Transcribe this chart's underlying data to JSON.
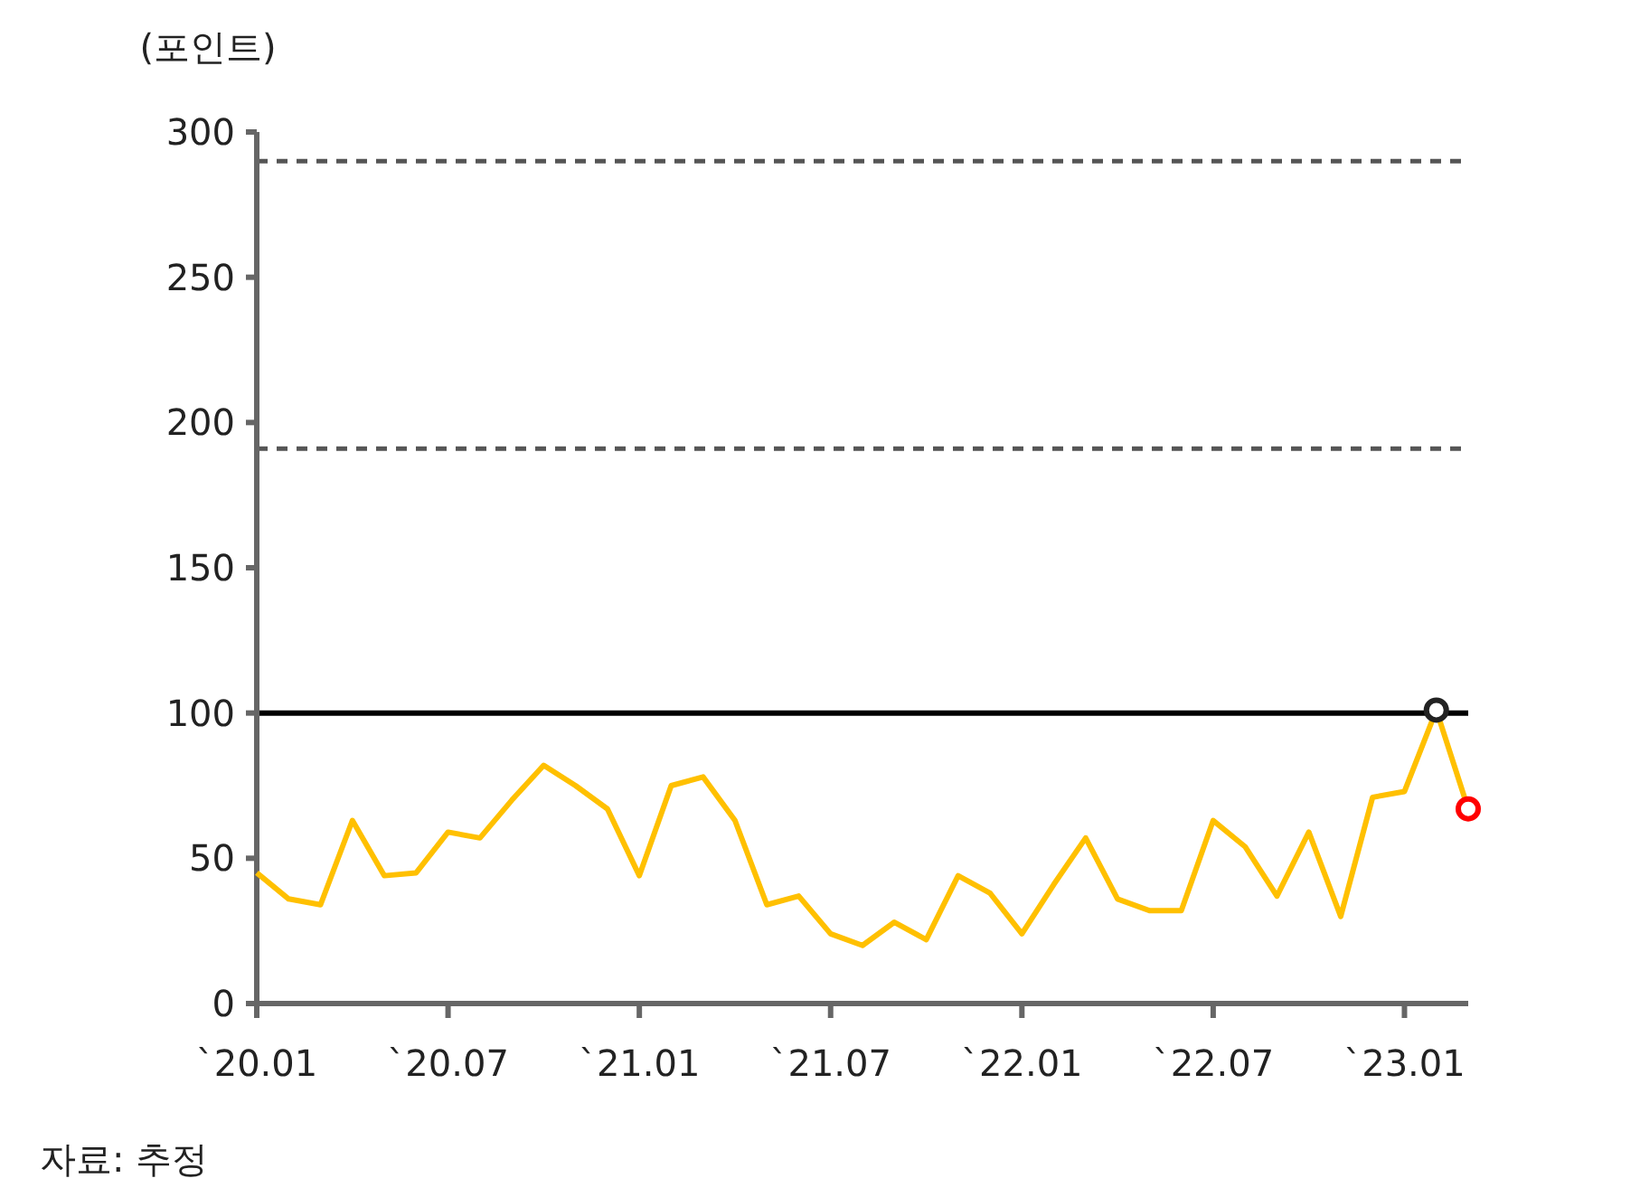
{
  "chart_data": {
    "type": "line",
    "ylabel": "(포인트)",
    "annotations": [
      "자료: 추정"
    ],
    "x": [
      "2020-01",
      "2020-02",
      "2020-03",
      "2020-04",
      "2020-05",
      "2020-06",
      "2020-07",
      "2020-08",
      "2020-09",
      "2020-10",
      "2020-11",
      "2020-12",
      "2021-01",
      "2021-02",
      "2021-03",
      "2021-04",
      "2021-05",
      "2021-06",
      "2021-07",
      "2021-08",
      "2021-09",
      "2021-10",
      "2021-11",
      "2021-12",
      "2022-01",
      "2022-02",
      "2022-03",
      "2022-04",
      "2022-05",
      "2022-06",
      "2022-07",
      "2022-08",
      "2022-09",
      "2022-10",
      "2022-11",
      "2022-12",
      "2023-01",
      "2023-02",
      "2023-03"
    ],
    "series": [
      {
        "type": "line",
        "color": "#ffc000",
        "marker": "none",
        "values": [
          45,
          36,
          34,
          63,
          44,
          45,
          59,
          57,
          70,
          82,
          75,
          67,
          44,
          75,
          78,
          63,
          34,
          37,
          24,
          20,
          28,
          22,
          44,
          38,
          24,
          41,
          57,
          36,
          32,
          32,
          63,
          54,
          37,
          59,
          30,
          71,
          73,
          101,
          67
        ]
      },
      {
        "type": "scatter",
        "color": "#222222",
        "marker": "circle",
        "x": [
          "2023-02"
        ],
        "values": [
          101
        ]
      },
      {
        "type": "scatter",
        "color": "#ff0000",
        "marker": "circle",
        "x": [
          "2023-03"
        ],
        "values": [
          67
        ]
      }
    ],
    "xlim": [
      "2020-01",
      "2023-03"
    ],
    "xticks": [
      {
        "value": "2020-01",
        "label": "`20.01"
      },
      {
        "value": "2020-07",
        "label": "`20.07"
      },
      {
        "value": "2021-01",
        "label": "`21.01"
      },
      {
        "value": "2021-07",
        "label": "`21.07"
      },
      {
        "value": "2022-01",
        "label": "`22.01"
      },
      {
        "value": "2022-07",
        "label": "`22.07"
      },
      {
        "value": "2023-01",
        "label": "`23.01"
      }
    ],
    "ylim": [
      0,
      300
    ],
    "yticks": [
      0,
      50,
      100,
      150,
      200,
      250,
      300
    ],
    "ref_lines": [
      {
        "axis": "y",
        "value": 100,
        "color": "#000000",
        "line_style": "solid"
      },
      {
        "axis": "y",
        "value": 191,
        "color": "#555555",
        "line_style": "dashed"
      },
      {
        "axis": "y",
        "value": 290,
        "color": "#555555",
        "line_style": "dashed"
      }
    ],
    "grid": false
  }
}
